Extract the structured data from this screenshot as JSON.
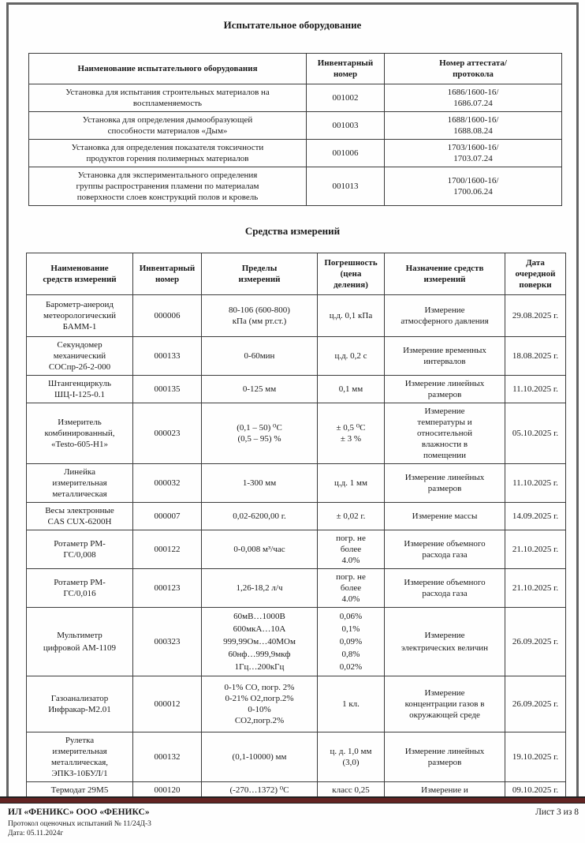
{
  "sections": {
    "equipment_title": "Испытательное оборудование",
    "instruments_title": "Средства измерений"
  },
  "equipment_table": {
    "headers": [
      "Наименование испытательного оборудования",
      "Инвентарный\nномер",
      "Номер аттестата/\nпротокола"
    ],
    "rows": [
      [
        "Установка для испытания строительных материалов на\nвоспламеняемость",
        "001002",
        "1686/1600-16/\n1686.07.24"
      ],
      [
        "Установка для определения дымообразующей\nспособности материалов «Дым»",
        "001003",
        "1688/1600-16/\n1688.08.24"
      ],
      [
        "Установка для определения показателя токсичности\nпродуктов горения полимерных материалов",
        "001006",
        "1703/1600-16/\n1703.07.24"
      ],
      [
        "Установка для экспериментального определения\nгруппы распространения пламени по материалам\nповерхности слоев конструкций полов и кровель",
        "001013",
        "1700/1600-16/\n1700.06.24"
      ]
    ]
  },
  "instruments_table": {
    "headers": [
      "Наименование\nсредств измерений",
      "Инвентарный\nномер",
      "Пределы\nизмерений",
      "Погрешность\n(цена\nделения)",
      "Назначение средств\nизмерений",
      "Дата\nочередной\nповерки"
    ],
    "rows": [
      [
        "Барометр-анероид\nметеорологический\nБАММ-1",
        "000006",
        "80-106 (600-800)\nкПа (мм рт.ст.)",
        "ц.д. 0,1 кПа",
        "Измерение\nатмосферного давления",
        "29.08.2025 г."
      ],
      [
        "Секундомер\nмеханический\nСОСпр-2б-2-000",
        "000133",
        "0-60мин",
        "ц.д. 0,2 с",
        "Измерение временных\nинтервалов",
        "18.08.2025 г."
      ],
      [
        "Штангенциркуль\nШЦ-I-125-0.1",
        "000135",
        "0-125 мм",
        "0,1 мм",
        "Измерение линейных\nразмеров",
        "11.10.2025 г."
      ],
      [
        "Измеритель\nкомбинированный,\n«Testo-605-H1»",
        "000023",
        "(0,1 – 50) ⁰С\n(0,5 – 95) %",
        "± 0,5 ⁰С\n± 3 %",
        "Измерение\nтемпературы и\nотносительной\nвлажности в\nпомещении",
        "05.10.2025 г."
      ],
      [
        "Линейка\nизмерительная\nметаллическая",
        "000032",
        "1-300 мм",
        "ц.д. 1 мм",
        "Измерение линейных\nразмеров",
        "11.10.2025 г."
      ],
      [
        "Весы электронные\nCAS CUX-6200H",
        "000007",
        "0,02-6200,00 г.",
        "± 0,02 г.",
        "Измерение массы",
        "14.09.2025 г."
      ],
      [
        "Ротаметр РМ-\nГС/0,008",
        "000122",
        "0-0,008 м³/час",
        "погр. не\nболее\n4.0%",
        "Измерение объемного\nрасхода газа",
        "21.10.2025 г."
      ],
      [
        "Ротаметр РМ-\nГС/0,016",
        "000123",
        "1,26-18,2 л/ч",
        "погр. не\nболее\n4.0%",
        "Измерение объемного\nрасхода газа",
        "21.10.2025 г."
      ],
      [
        "Мультиметр\nцифровой АМ-1109",
        "000323",
        "60мВ…1000В\n600мкА…10А\n999,99Ом…40МОм\n60нф…999,9мкф\n1Гц…200кГц",
        "0,06%\n0,1%\n0,09%\n0,8%\n0,02%",
        "Измерение\nэлектрических величин",
        "26.09.2025 г."
      ],
      [
        "Газоанализатор\nИнфракар-М2.01",
        "000012",
        "0-1% СО, погр. 2%\n0-21% О2,погр.2%\n0-10%\nСО2,погр.2%",
        "1 кл.",
        "Измерение\nконцентрации газов в\nокружающей среде",
        "26.09.2025 г."
      ],
      [
        "Рулетка\nизмерительная\nметаллическая,\nЭПКЗ-10БУЛ/1",
        "000132",
        "(0,1-10000) мм",
        "ц. д. 1,0 мм\n(3,0)",
        "Измерение линейных\nразмеров",
        "19.10.2025 г."
      ],
      [
        "Термодат 29М5",
        "000120",
        "(-270…1372) ⁰С",
        "класс 0,25",
        "Измерение и",
        "09.10.2025 г."
      ]
    ]
  },
  "footer": {
    "lab_name": "ИЛ «ФЕНИКС» ООО «ФЕНИКС»",
    "protocol_line": "Протокол оценочных испытаний № 11/24Д-3",
    "date_line": "Дата: 05.11.2024г",
    "sheet_info": "Лист 3 из 8"
  },
  "colors": {
    "rule": "#632423",
    "scan_edge": "#646464"
  }
}
